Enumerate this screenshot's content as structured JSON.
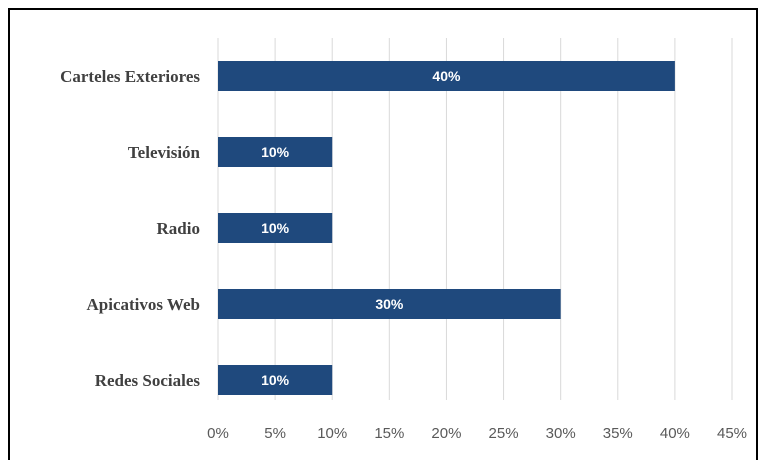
{
  "chart_data": {
    "type": "bar",
    "orientation": "horizontal",
    "categories": [
      "Carteles Exteriores",
      "Televisión",
      "Radio",
      "Apicativos Web",
      "Redes Sociales"
    ],
    "values": [
      40,
      10,
      10,
      30,
      10
    ],
    "data_labels": [
      "40%",
      "10%",
      "10%",
      "30%",
      "10%"
    ],
    "xlim": [
      0,
      45
    ],
    "x_ticks": [
      0,
      5,
      10,
      15,
      20,
      25,
      30,
      35,
      40,
      45
    ],
    "x_tick_labels": [
      "0%",
      "5%",
      "10%",
      "15%",
      "20%",
      "25%",
      "30%",
      "35%",
      "40%",
      "45%"
    ],
    "grid": true,
    "colors": {
      "bar": "#1f497d",
      "grid": "#d9d9d9",
      "border": "#000000"
    }
  }
}
